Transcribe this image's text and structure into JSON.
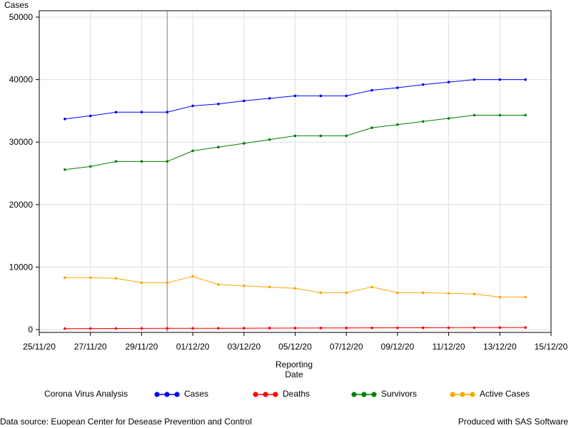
{
  "chart_data": {
    "type": "line",
    "title": "",
    "xlabel_line1": "Reporting",
    "xlabel_line2": "Date",
    "ylabel": "Cases",
    "ylim": [
      0,
      50000
    ],
    "yticks": [
      0,
      10000,
      20000,
      30000,
      40000,
      50000
    ],
    "ytick_labels": [
      "0",
      "10000",
      "20000",
      "30000",
      "40000",
      "50000"
    ],
    "xlim": [
      "2020-11-25",
      "2020-12-15"
    ],
    "xticks": [
      "2020-11-25",
      "2020-11-27",
      "2020-11-29",
      "2020-12-01",
      "2020-12-03",
      "2020-12-05",
      "2020-12-07",
      "2020-12-09",
      "2020-12-11",
      "2020-12-13",
      "2020-12-15"
    ],
    "xtick_labels": [
      "25/11/20",
      "27/11/20",
      "29/11/20",
      "01/12/20",
      "03/12/20",
      "05/12/20",
      "07/12/20",
      "09/12/20",
      "11/12/20",
      "13/12/20",
      "15/12/20"
    ],
    "reference_line_x": "2020-11-30",
    "grid": true,
    "legend_position": "bottom",
    "x": [
      "2020-11-26",
      "2020-11-27",
      "2020-11-28",
      "2020-11-29",
      "2020-11-30",
      "2020-12-01",
      "2020-12-02",
      "2020-12-03",
      "2020-12-04",
      "2020-12-05",
      "2020-12-06",
      "2020-12-07",
      "2020-12-08",
      "2020-12-09",
      "2020-12-10",
      "2020-12-11",
      "2020-12-12",
      "2020-12-13",
      "2020-12-14"
    ],
    "series": [
      {
        "name": "Cases",
        "color": "#0000ff",
        "values": [
          33700,
          34200,
          34800,
          34800,
          34800,
          35800,
          36100,
          36600,
          37000,
          37400,
          37400,
          37400,
          38300,
          38700,
          39200,
          39600,
          40000,
          40000,
          40000
        ]
      },
      {
        "name": "Deaths",
        "color": "#ff0000",
        "values": [
          150,
          160,
          170,
          180,
          190,
          200,
          210,
          220,
          230,
          240,
          250,
          260,
          270,
          280,
          290,
          300,
          310,
          320,
          330
        ]
      },
      {
        "name": "Survivors",
        "color": "#008000",
        "values": [
          25600,
          26100,
          26900,
          26900,
          26900,
          28600,
          29200,
          29800,
          30400,
          31000,
          31000,
          31000,
          32300,
          32800,
          33300,
          33800,
          34300,
          34300,
          34300
        ]
      },
      {
        "name": "Active Cases",
        "color": "#ffa500",
        "values": [
          8300,
          8300,
          8200,
          7500,
          7500,
          8500,
          7200,
          7000,
          6800,
          6600,
          5900,
          5900,
          6800,
          5900,
          5900,
          5800,
          5700,
          5200,
          5200
        ]
      }
    ]
  },
  "legend": {
    "title": "Corona Virus Analysis"
  },
  "footnotes": {
    "left": "Data source: Euopean Center for Desease Prevention and Control",
    "right": "Produced with SAS Software"
  },
  "colors": {
    "axis": "#000000",
    "grid": "#e0e0e0",
    "reference_line": "#808080"
  }
}
